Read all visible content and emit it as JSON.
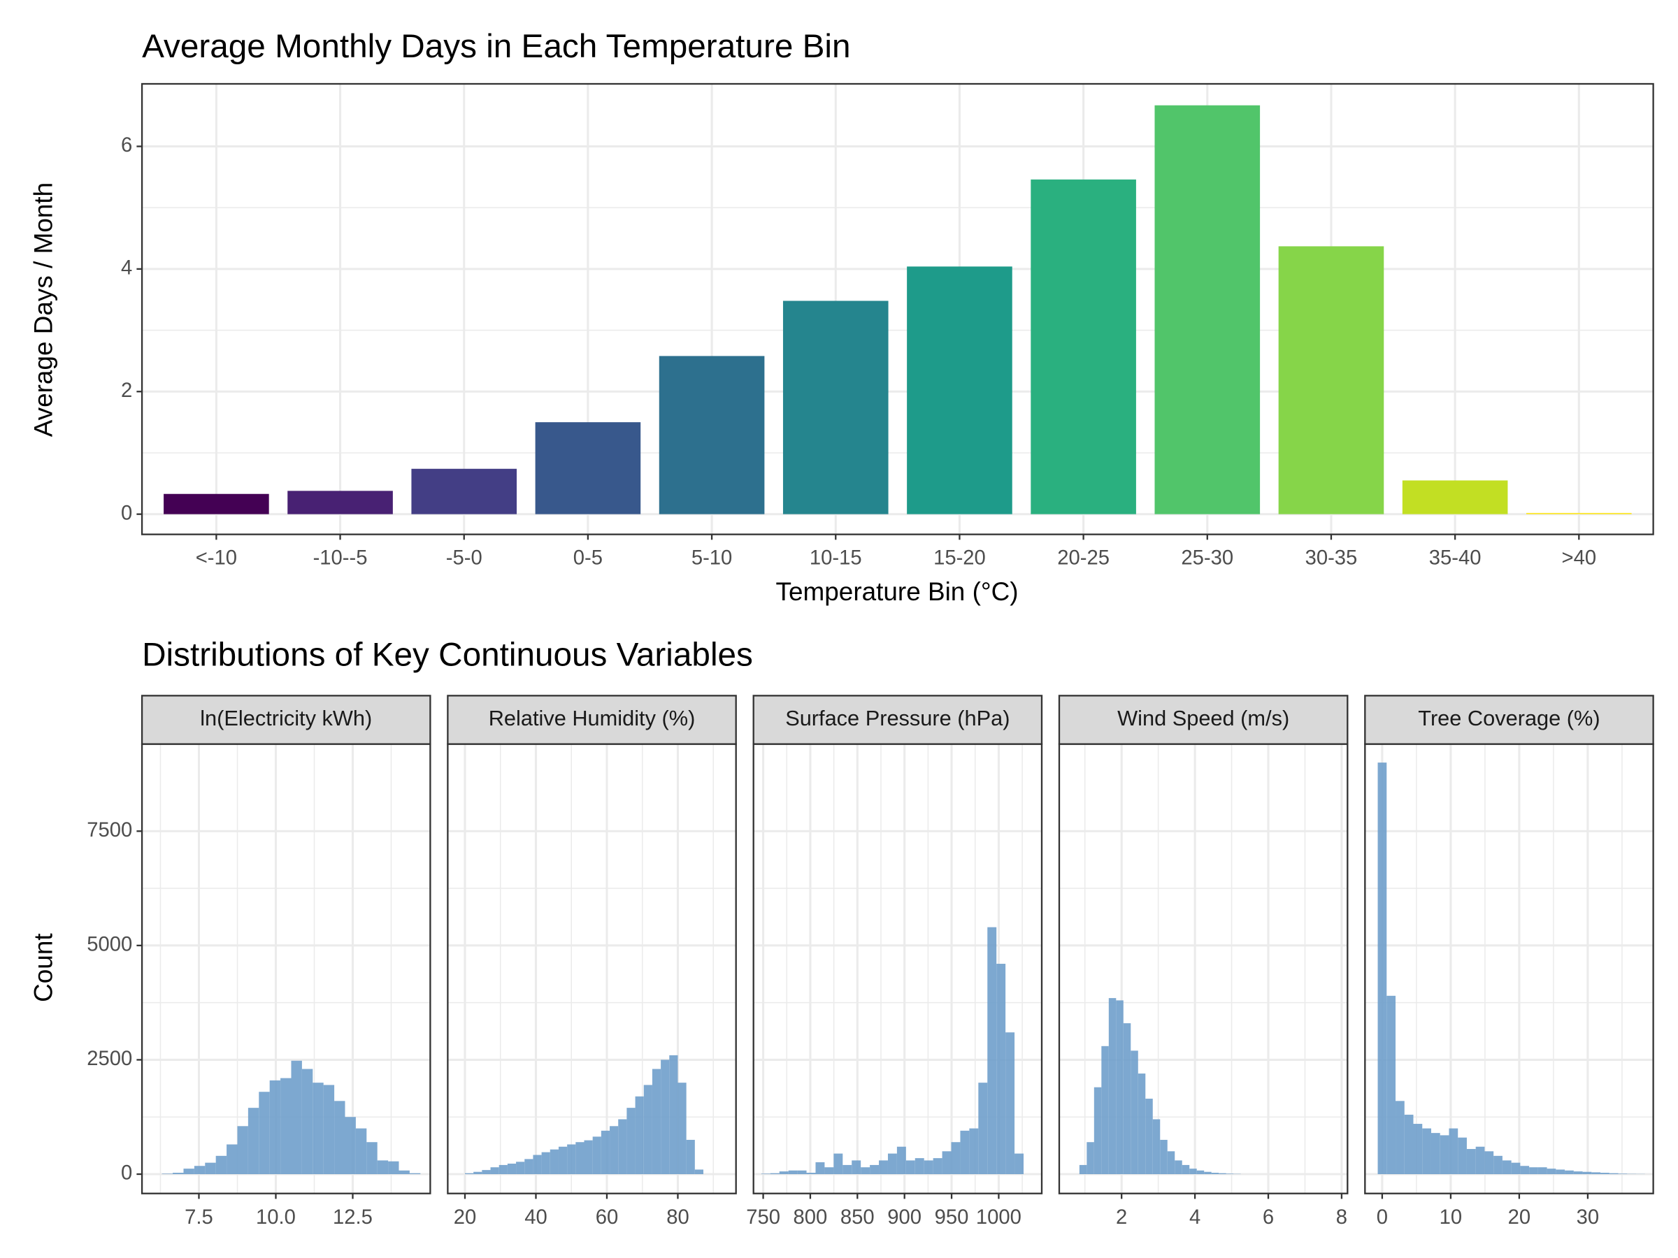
{
  "chart_data": [
    {
      "type": "bar",
      "title": "Average Monthly Days in Each Temperature Bin",
      "xlabel": "Temperature Bin (°C)",
      "ylabel": "Average Days / Month",
      "categories": [
        "<-10",
        "-10--5",
        "-5-0",
        "0-5",
        "5-10",
        "10-15",
        "15-20",
        "20-25",
        "25-30",
        "30-35",
        "35-40",
        ">40"
      ],
      "values": [
        0.33,
        0.38,
        0.74,
        1.5,
        2.58,
        3.48,
        4.04,
        5.46,
        6.67,
        4.37,
        0.55,
        0.02
      ],
      "colors": [
        "#440154",
        "#482173",
        "#433e85",
        "#38588c",
        "#2d708e",
        "#25858e",
        "#1e9b8a",
        "#2ab07f",
        "#51c56a",
        "#86d549",
        "#c2df23",
        "#fde725"
      ],
      "ylim": [
        -0.33,
        7.02
      ],
      "yticks": [
        0,
        2,
        4,
        6
      ],
      "grid": true
    },
    {
      "type": "histogram",
      "title": "Distributions of Key Continuous Variables",
      "ylabel": "Count",
      "color": "#6f9fcb",
      "ylim": [
        -423,
        9405
      ],
      "yticks": [
        0,
        2500,
        5000,
        7500
      ],
      "grid": true,
      "facets": [
        {
          "title": "ln(Electricity kWh)",
          "xlim": [
            5.65,
            15.02
          ],
          "xticks": [
            7.5,
            {
              "value": 10,
              "label": "10.0"
            },
            12.5
          ],
          "bins": [
            6.3,
            6.65,
            7,
            7.35,
            7.7,
            8.05,
            8.4,
            8.75,
            9.1,
            9.45,
            9.8,
            10.15,
            10.5,
            10.85,
            11.2,
            11.55,
            11.9,
            12.25,
            12.6,
            12.95,
            13.3,
            13.65,
            14,
            14.35,
            14.7
          ],
          "counts": [
            10,
            30,
            120,
            180,
            250,
            400,
            650,
            1050,
            1450,
            1800,
            2050,
            2100,
            2480,
            2300,
            2000,
            1950,
            1600,
            1250,
            1000,
            700,
            300,
            280,
            80,
            20
          ]
        },
        {
          "title": "Relative Humidity (%)",
          "xlim": [
            15.15,
            96.4
          ],
          "xticks": [
            20,
            40,
            60,
            80
          ],
          "bins": [
            20,
            22.4,
            24.8,
            27.2,
            29.6,
            32,
            34.4,
            36.8,
            39.2,
            41.6,
            44,
            46.4,
            48.8,
            51.2,
            53.6,
            56,
            58.4,
            60.8,
            63.2,
            65.6,
            68,
            70.4,
            72.8,
            75.2,
            77.6,
            80,
            82.4,
            84.8,
            87.2
          ],
          "counts": [
            20,
            50,
            90,
            150,
            200,
            230,
            270,
            330,
            420,
            480,
            540,
            600,
            650,
            700,
            740,
            820,
            950,
            1050,
            1200,
            1450,
            1700,
            1950,
            2300,
            2500,
            2600,
            2000,
            750,
            100
          ]
        },
        {
          "title": "Surface Pressure (hPa)",
          "xlim": [
            739.7,
            1045.7
          ],
          "xticks": [
            750,
            800,
            850,
            900,
            950,
            1000
          ],
          "bins": [
            748,
            757.6,
            767.2,
            776.8,
            786.4,
            796,
            805.6,
            815.2,
            824.8,
            834.4,
            844,
            853.6,
            863.2,
            872.8,
            882.4,
            892,
            901.6,
            911.2,
            920.8,
            930.4,
            940,
            949.6,
            959.2,
            968.8,
            978.4,
            988,
            997.6,
            1007.2,
            1016.8,
            1026.4
          ],
          "counts": [
            10,
            20,
            60,
            80,
            80,
            30,
            260,
            150,
            450,
            200,
            300,
            150,
            200,
            300,
            450,
            600,
            300,
            350,
            300,
            350,
            500,
            700,
            950,
            1000,
            2000,
            5400,
            4600,
            3100,
            450
          ]
        },
        {
          "title": "Wind Speed (m/s)",
          "xlim": [
            0.3,
            8.16
          ],
          "xticks": [
            2,
            4,
            6,
            8
          ],
          "bins": [
            0.85,
            1.05,
            1.25,
            1.45,
            1.65,
            1.85,
            2.05,
            2.25,
            2.45,
            2.65,
            2.85,
            3.05,
            3.25,
            3.45,
            3.65,
            3.85,
            4.05,
            4.25,
            4.45,
            4.65,
            4.85,
            5.05,
            5.25
          ],
          "counts": [
            200,
            700,
            1900,
            2800,
            3850,
            3800,
            3300,
            2700,
            2200,
            1650,
            1200,
            750,
            500,
            300,
            200,
            120,
            80,
            50,
            30,
            20,
            10,
            5
          ]
        },
        {
          "title": "Tree Coverage (%)",
          "xlim": [
            -2.51,
            39.56
          ],
          "xticks": [
            0,
            10,
            20,
            30
          ],
          "bins": [
            -0.65,
            0.65,
            1.95,
            3.25,
            4.55,
            5.85,
            7.15,
            8.45,
            9.75,
            11.05,
            12.35,
            13.65,
            14.95,
            16.25,
            17.55,
            18.85,
            20.15,
            21.45,
            22.75,
            24.05,
            25.35,
            26.65,
            27.95,
            29.25,
            30.55,
            31.85,
            33.15,
            34.45,
            35.75,
            37.05,
            38.35
          ],
          "counts": [
            9000,
            3900,
            1600,
            1300,
            1100,
            1000,
            900,
            850,
            1000,
            800,
            550,
            600,
            500,
            400,
            300,
            250,
            180,
            150,
            150,
            120,
            100,
            80,
            60,
            50,
            40,
            30,
            20,
            10,
            5,
            3
          ]
        }
      ]
    }
  ]
}
